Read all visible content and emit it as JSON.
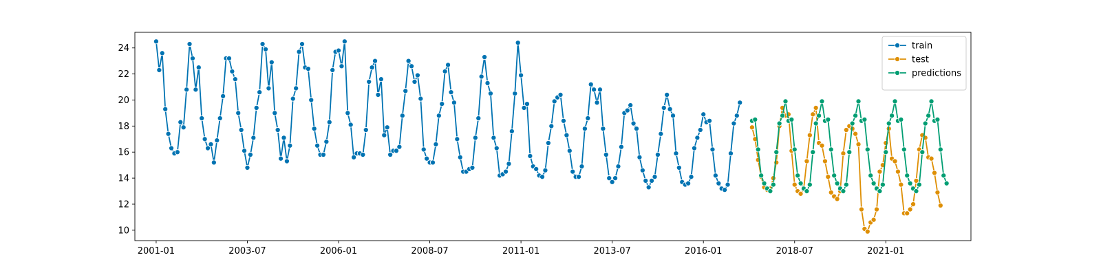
{
  "chart_data": {
    "type": "line",
    "title": "",
    "xlabel": "",
    "ylabel": "",
    "xlim": [
      "2000-06",
      "2023-05"
    ],
    "ylim": [
      9.2,
      25.2
    ],
    "x_ticks": [
      "2001-01",
      "2003-07",
      "2006-01",
      "2008-07",
      "2011-01",
      "2013-07",
      "2016-01",
      "2018-07",
      "2021-01"
    ],
    "y_ticks": [
      10,
      12,
      14,
      16,
      18,
      20,
      22,
      24
    ],
    "grid": false,
    "legend": {
      "position": "top-right",
      "entries": [
        "train",
        "test",
        "predictions"
      ]
    },
    "series": [
      {
        "name": "train",
        "color": "#0173b2",
        "start": "2001-01",
        "values": [
          24.5,
          22.3,
          23.6,
          19.3,
          17.4,
          16.3,
          15.9,
          16.0,
          18.3,
          17.9,
          20.8,
          24.3,
          23.2,
          20.8,
          22.5,
          18.6,
          17.0,
          16.3,
          16.6,
          15.2,
          16.9,
          18.6,
          20.3,
          23.2,
          23.2,
          22.2,
          21.6,
          19.0,
          17.7,
          16.1,
          14.8,
          15.8,
          17.1,
          19.4,
          20.6,
          24.3,
          23.9,
          20.9,
          22.9,
          19.0,
          17.7,
          15.5,
          17.1,
          15.3,
          16.5,
          20.1,
          20.9,
          23.7,
          24.3,
          22.5,
          22.4,
          20.0,
          17.8,
          16.5,
          15.8,
          15.8,
          16.8,
          18.3,
          22.3,
          23.7,
          23.8,
          22.6,
          24.5,
          19.0,
          18.1,
          15.6,
          15.9,
          15.9,
          15.8,
          17.7,
          21.4,
          22.5,
          23.0,
          20.4,
          21.6,
          17.3,
          17.9,
          15.8,
          16.1,
          16.1,
          16.4,
          18.8,
          20.7,
          23.0,
          22.6,
          21.4,
          21.9,
          20.1,
          16.2,
          15.5,
          15.2,
          15.2,
          16.6,
          18.8,
          19.7,
          22.2,
          22.7,
          20.6,
          19.8,
          17.0,
          15.6,
          14.5,
          14.5,
          14.7,
          14.8,
          17.1,
          18.6,
          21.8,
          23.3,
          21.3,
          20.5,
          17.1,
          16.3,
          14.2,
          14.3,
          14.5,
          15.1,
          17.6,
          20.5,
          24.4,
          21.9,
          19.4,
          19.7,
          15.7,
          14.9,
          14.7,
          14.2,
          14.1,
          14.6,
          16.7,
          18.0,
          19.9,
          20.2,
          20.4,
          18.4,
          17.3,
          16.1,
          14.5,
          14.1,
          14.1,
          14.9,
          17.8,
          18.6,
          21.2,
          20.8,
          19.8,
          20.8,
          17.8,
          15.8,
          14.0,
          13.7,
          14.0,
          14.9,
          16.4,
          19.0,
          19.2,
          19.6,
          18.2,
          17.8,
          15.6,
          14.6,
          13.8,
          13.3,
          13.8,
          14.1,
          15.8,
          17.4,
          19.4,
          20.4,
          19.3,
          18.8,
          15.9,
          14.8,
          13.7,
          13.5,
          13.6,
          14.1,
          16.3,
          17.1,
          17.7,
          18.9,
          18.3,
          18.4,
          16.2,
          14.2,
          13.6,
          13.2,
          13.1,
          13.5,
          15.9,
          18.2,
          18.8,
          19.8
        ]
      },
      {
        "name": "test",
        "color": "#de8f05",
        "start": "2017-05",
        "values": [
          17.9,
          17.0,
          15.4,
          14.1,
          13.3,
          13.1,
          13.2,
          14.0,
          15.2,
          18.0,
          19.4,
          18.8,
          18.9,
          16.1,
          13.5,
          13.0,
          12.8,
          13.2,
          15.3,
          17.3,
          18.9,
          19.4,
          16.7,
          16.5,
          15.3,
          14.1,
          12.9,
          12.6,
          12.4,
          13.0,
          15.9,
          17.7,
          18.0,
          17.8,
          17.4,
          16.6,
          11.6,
          10.1,
          9.9,
          10.6,
          10.8,
          11.6,
          14.5,
          15.0,
          16.7,
          17.8,
          15.5,
          15.3,
          14.5,
          13.5,
          11.3,
          11.3,
          11.6,
          12.0,
          13.8,
          16.2,
          17.3,
          17.1,
          15.6,
          15.5,
          14.4,
          12.9,
          11.9
        ]
      },
      {
        "name": "predictions",
        "color": "#029e73",
        "start": "2017-05",
        "values": [
          18.4,
          18.5,
          16.2,
          14.2,
          13.6,
          13.2,
          13.0,
          13.5,
          16.0,
          18.2,
          18.8,
          19.9,
          18.4,
          18.5,
          16.2,
          14.2,
          13.6,
          13.2,
          13.0,
          13.5,
          16.0,
          18.2,
          18.8,
          19.9,
          18.4,
          18.5,
          16.2,
          14.2,
          13.6,
          13.2,
          13.0,
          13.5,
          16.0,
          18.2,
          18.8,
          19.9,
          18.4,
          18.5,
          16.2,
          14.2,
          13.6,
          13.2,
          13.0,
          13.5,
          16.0,
          18.2,
          18.8,
          19.9,
          18.4,
          18.5,
          16.2,
          14.2,
          13.6,
          13.2,
          13.0,
          13.5,
          16.0,
          18.2,
          18.8,
          19.9,
          18.4,
          18.5,
          16.2,
          14.2,
          13.6
        ]
      }
    ]
  }
}
